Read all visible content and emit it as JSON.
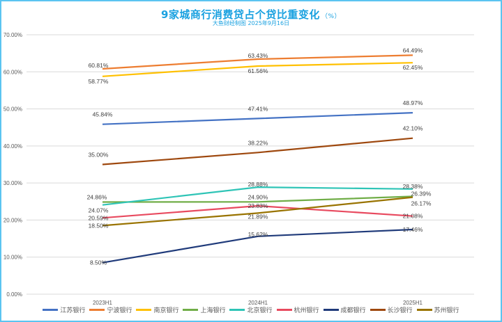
{
  "title": "9家城商行消费贷占个贷比重变化",
  "title_unit": "（%）",
  "subtitle": "大鱼财经制图 2025年9月16日",
  "chart_data": {
    "type": "line",
    "title": "9家城商行消费贷占个贷比重变化（%）",
    "subtitle": "大鱼财经制图 2025年9月16日",
    "xlabel": "",
    "ylabel": "",
    "categories": [
      "2023H1",
      "2024H1",
      "2025H1"
    ],
    "ylim": [
      0,
      70
    ],
    "yticks": [
      0,
      10,
      20,
      30,
      40,
      50,
      60,
      70
    ],
    "ytick_labels": [
      "0.00%",
      "10.00%",
      "20.00%",
      "30.00%",
      "40.00%",
      "50.00%",
      "60.00%",
      "70.00%"
    ],
    "grid": true,
    "legend_position": "bottom",
    "series": [
      {
        "name": "江苏银行",
        "color": "#4472c4",
        "values": [
          45.84,
          47.41,
          48.97
        ],
        "labels": [
          "45.84%",
          "47.41%",
          "48.97%"
        ]
      },
      {
        "name": "宁波银行",
        "color": "#ed7d31",
        "values": [
          60.81,
          63.43,
          64.49
        ],
        "labels": [
          "60.81%",
          "63.43%",
          "64.49%"
        ]
      },
      {
        "name": "南京银行",
        "color": "#ffc000",
        "values": [
          58.77,
          61.56,
          62.45
        ],
        "labels": [
          "58.77%",
          "61.56%",
          "62.45%"
        ]
      },
      {
        "name": "上海银行",
        "color": "#70ad47",
        "values": [
          24.86,
          24.9,
          26.39
        ],
        "labels": [
          "24.86%",
          "24.90%",
          "26.39%"
        ]
      },
      {
        "name": "北京银行",
        "color": "#2ec4b6",
        "values": [
          24.07,
          28.88,
          28.38
        ],
        "labels": [
          "24.07%",
          "28.88%",
          "28.38%"
        ]
      },
      {
        "name": "杭州银行",
        "color": "#e84a5f",
        "values": [
          20.59,
          23.83,
          21.08
        ],
        "labels": [
          "20.59%",
          "23.83%",
          "21.08%"
        ]
      },
      {
        "name": "成都银行",
        "color": "#1f3a7a",
        "values": [
          8.5,
          15.62,
          17.46
        ],
        "labels": [
          "8.50%",
          "15.62%",
          "17.46%"
        ]
      },
      {
        "name": "长沙银行",
        "color": "#9e480e",
        "values": [
          35.0,
          38.22,
          42.1
        ],
        "labels": [
          "35.00%",
          "38.22%",
          "42.10%"
        ]
      },
      {
        "name": "苏州银行",
        "color": "#997300",
        "values": [
          18.5,
          21.89,
          26.17
        ],
        "labels": [
          "18.50%",
          "21.89%",
          "26.17%"
        ]
      }
    ]
  }
}
